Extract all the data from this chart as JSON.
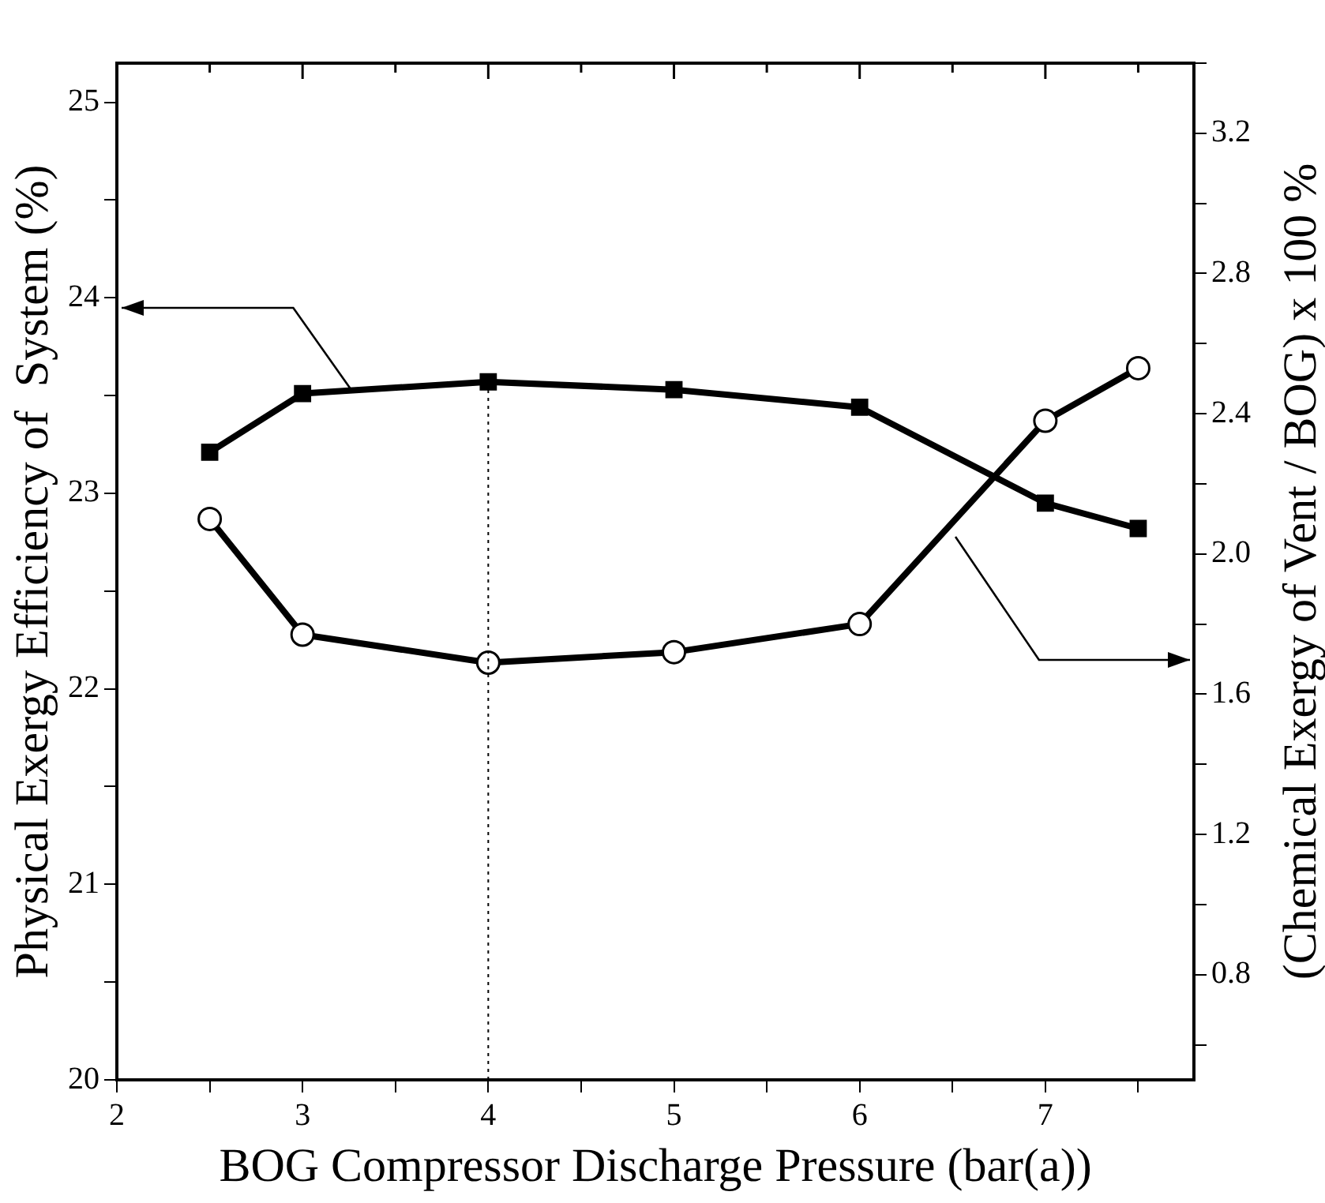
{
  "chart_data": {
    "type": "line",
    "xlabel": "BOG Compressor Discharge Pressure (bar(a))",
    "ylabel": "Physical Exergy Efficiency of  System (%)",
    "y2label": "(Chemical Exergy of Vent / BOG) x 100 %",
    "x": [
      2.5,
      3,
      4,
      5,
      6,
      7,
      7.5
    ],
    "series": [
      {
        "color": "#000000",
        "marker": "square",
        "values": [
          23.21,
          23.51,
          23.57,
          23.53,
          23.44,
          22.95,
          22.82
        ]
      },
      {
        "color": "#000000",
        "marker": "circle",
        "axis": "y2",
        "values": [
          2.1,
          1.77,
          1.69,
          1.72,
          1.8,
          2.38,
          2.53
        ]
      }
    ],
    "xlim": [
      2,
      7.8
    ],
    "xticks": [
      2,
      {
        "value": 2.5,
        "label": null
      },
      3,
      {
        "value": 3.5,
        "label": null
      },
      4,
      {
        "value": 4.5,
        "label": null
      },
      5,
      {
        "value": 5.5,
        "label": null
      },
      6,
      {
        "value": 6.5,
        "label": null
      },
      7,
      {
        "value": 7.5,
        "label": null
      }
    ],
    "ylim": [
      20,
      25.2
    ],
    "yticks": [
      20,
      {
        "value": 20.5,
        "label": null
      },
      21,
      {
        "value": 21.5,
        "label": null
      },
      22,
      {
        "value": 22.5,
        "label": null
      },
      23,
      {
        "value": 23.5,
        "label": null
      },
      24,
      {
        "value": 24.5,
        "label": null
      },
      25
    ],
    "y2lim": [
      0.5,
      3.4
    ],
    "y2ticks": [
      {
        "value": 0.6,
        "label": null
      },
      {
        "value": 0.8,
        "label": "0.8"
      },
      {
        "value": 1.0,
        "label": null
      },
      {
        "value": 1.2,
        "label": "1.2"
      },
      {
        "value": 1.4,
        "label": null
      },
      {
        "value": 1.6,
        "label": "1.6"
      },
      {
        "value": 1.8,
        "label": null
      },
      {
        "value": 2.0,
        "label": "2.0"
      },
      {
        "value": 2.2,
        "label": null
      },
      {
        "value": 2.4,
        "label": "2.4"
      },
      {
        "value": 2.6,
        "label": null
      },
      {
        "value": 2.8,
        "label": "2.8"
      },
      {
        "value": 3.0,
        "label": null
      },
      {
        "value": 3.2,
        "label": "3.2"
      },
      {
        "value": 3.4,
        "label": null
      }
    ],
    "ref_lines": [
      {
        "axis": "x",
        "value": 4,
        "line_style": "dotted"
      }
    ],
    "grid": false,
    "legend": false,
    "line_style": "solid"
  }
}
